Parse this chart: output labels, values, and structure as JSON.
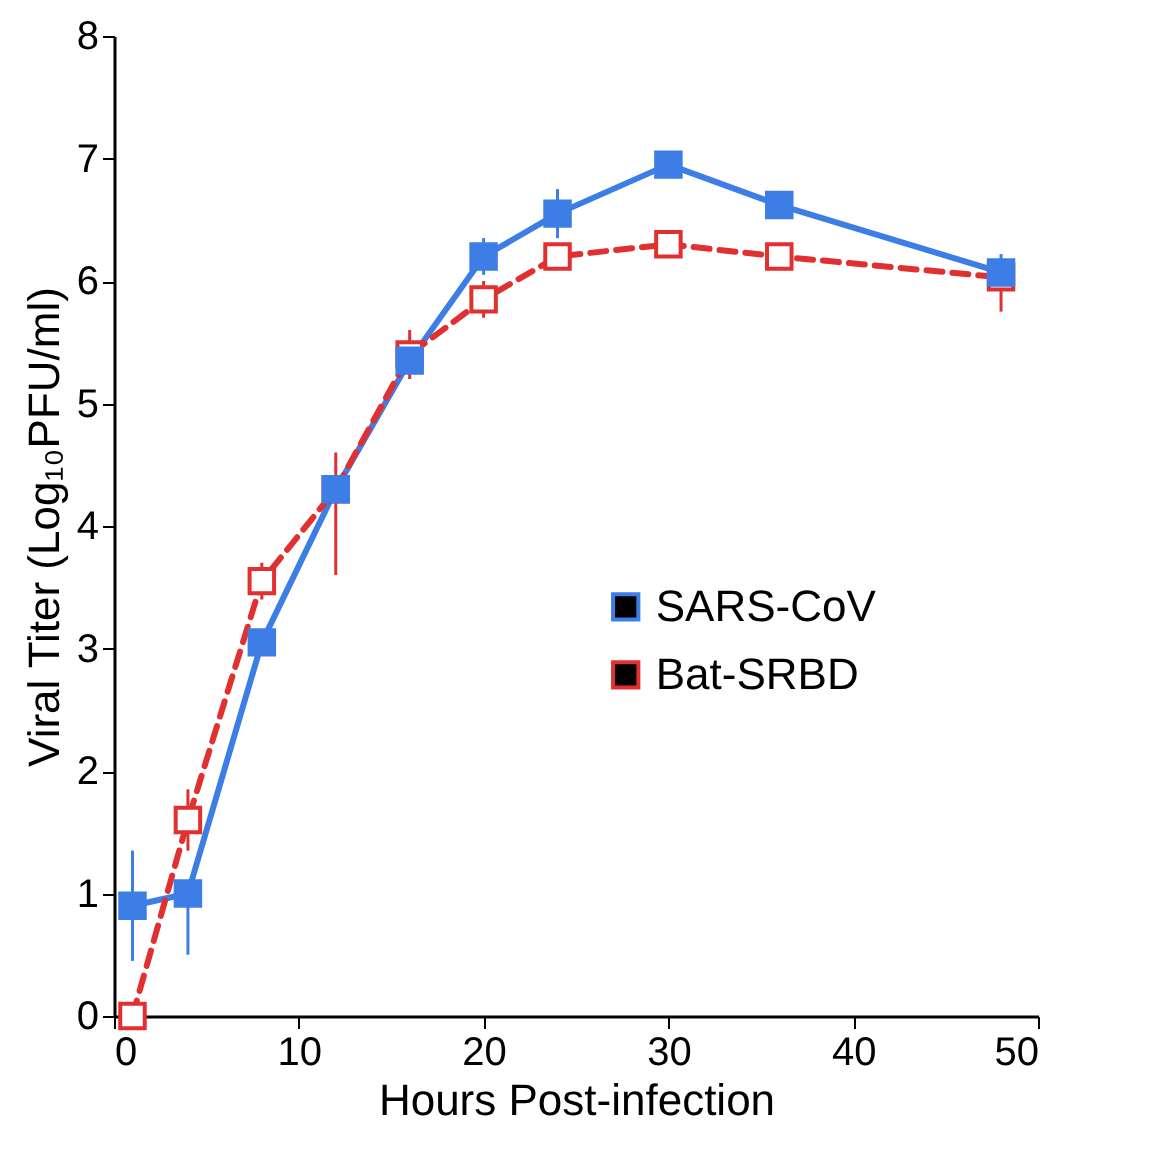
{
  "chart_data": {
    "type": "line",
    "xlabel": "Hours Post-infection",
    "ylabel": "Viral Titer (Log₁₀PFU/ml)",
    "xlim": [
      0,
      50
    ],
    "xticks": [
      0,
      10,
      20,
      30,
      40,
      50
    ],
    "ylim": [
      0,
      8
    ],
    "yticks": [
      0,
      1,
      2,
      3,
      4,
      5,
      6,
      7,
      8
    ],
    "grid": false,
    "legend": "right",
    "marker": "square",
    "series": [
      {
        "name": "SARS-CoV",
        "color": "#3d7ee6",
        "line_style": "solid",
        "x": [
          1,
          4,
          8,
          12,
          16,
          20,
          24,
          30,
          36,
          48
        ],
        "values": [
          0.9,
          1.0,
          3.05,
          4.3,
          5.35,
          6.2,
          6.55,
          6.95,
          6.62,
          6.07
        ],
        "errors": [
          0.45,
          [
            0.5,
            1.0
          ],
          0.1,
          0.1,
          0.1,
          0.15,
          0.2,
          0.1,
          0.1,
          0.15
        ]
      },
      {
        "name": "Bat-SRBD",
        "color": "#e03030",
        "line_style": "dashed",
        "x": [
          1,
          4,
          8,
          12,
          16,
          20,
          24,
          30,
          36,
          48
        ],
        "values": [
          0.0,
          1.6,
          3.55,
          4.3,
          5.4,
          5.85,
          6.2,
          6.3,
          6.2,
          6.03
        ],
        "errors": [
          null,
          0.25,
          0.15,
          [
            3.6,
            4.6
          ],
          0.2,
          0.15,
          0.1,
          0.1,
          null,
          [
            5.75,
            6.03
          ]
        ]
      }
    ]
  }
}
